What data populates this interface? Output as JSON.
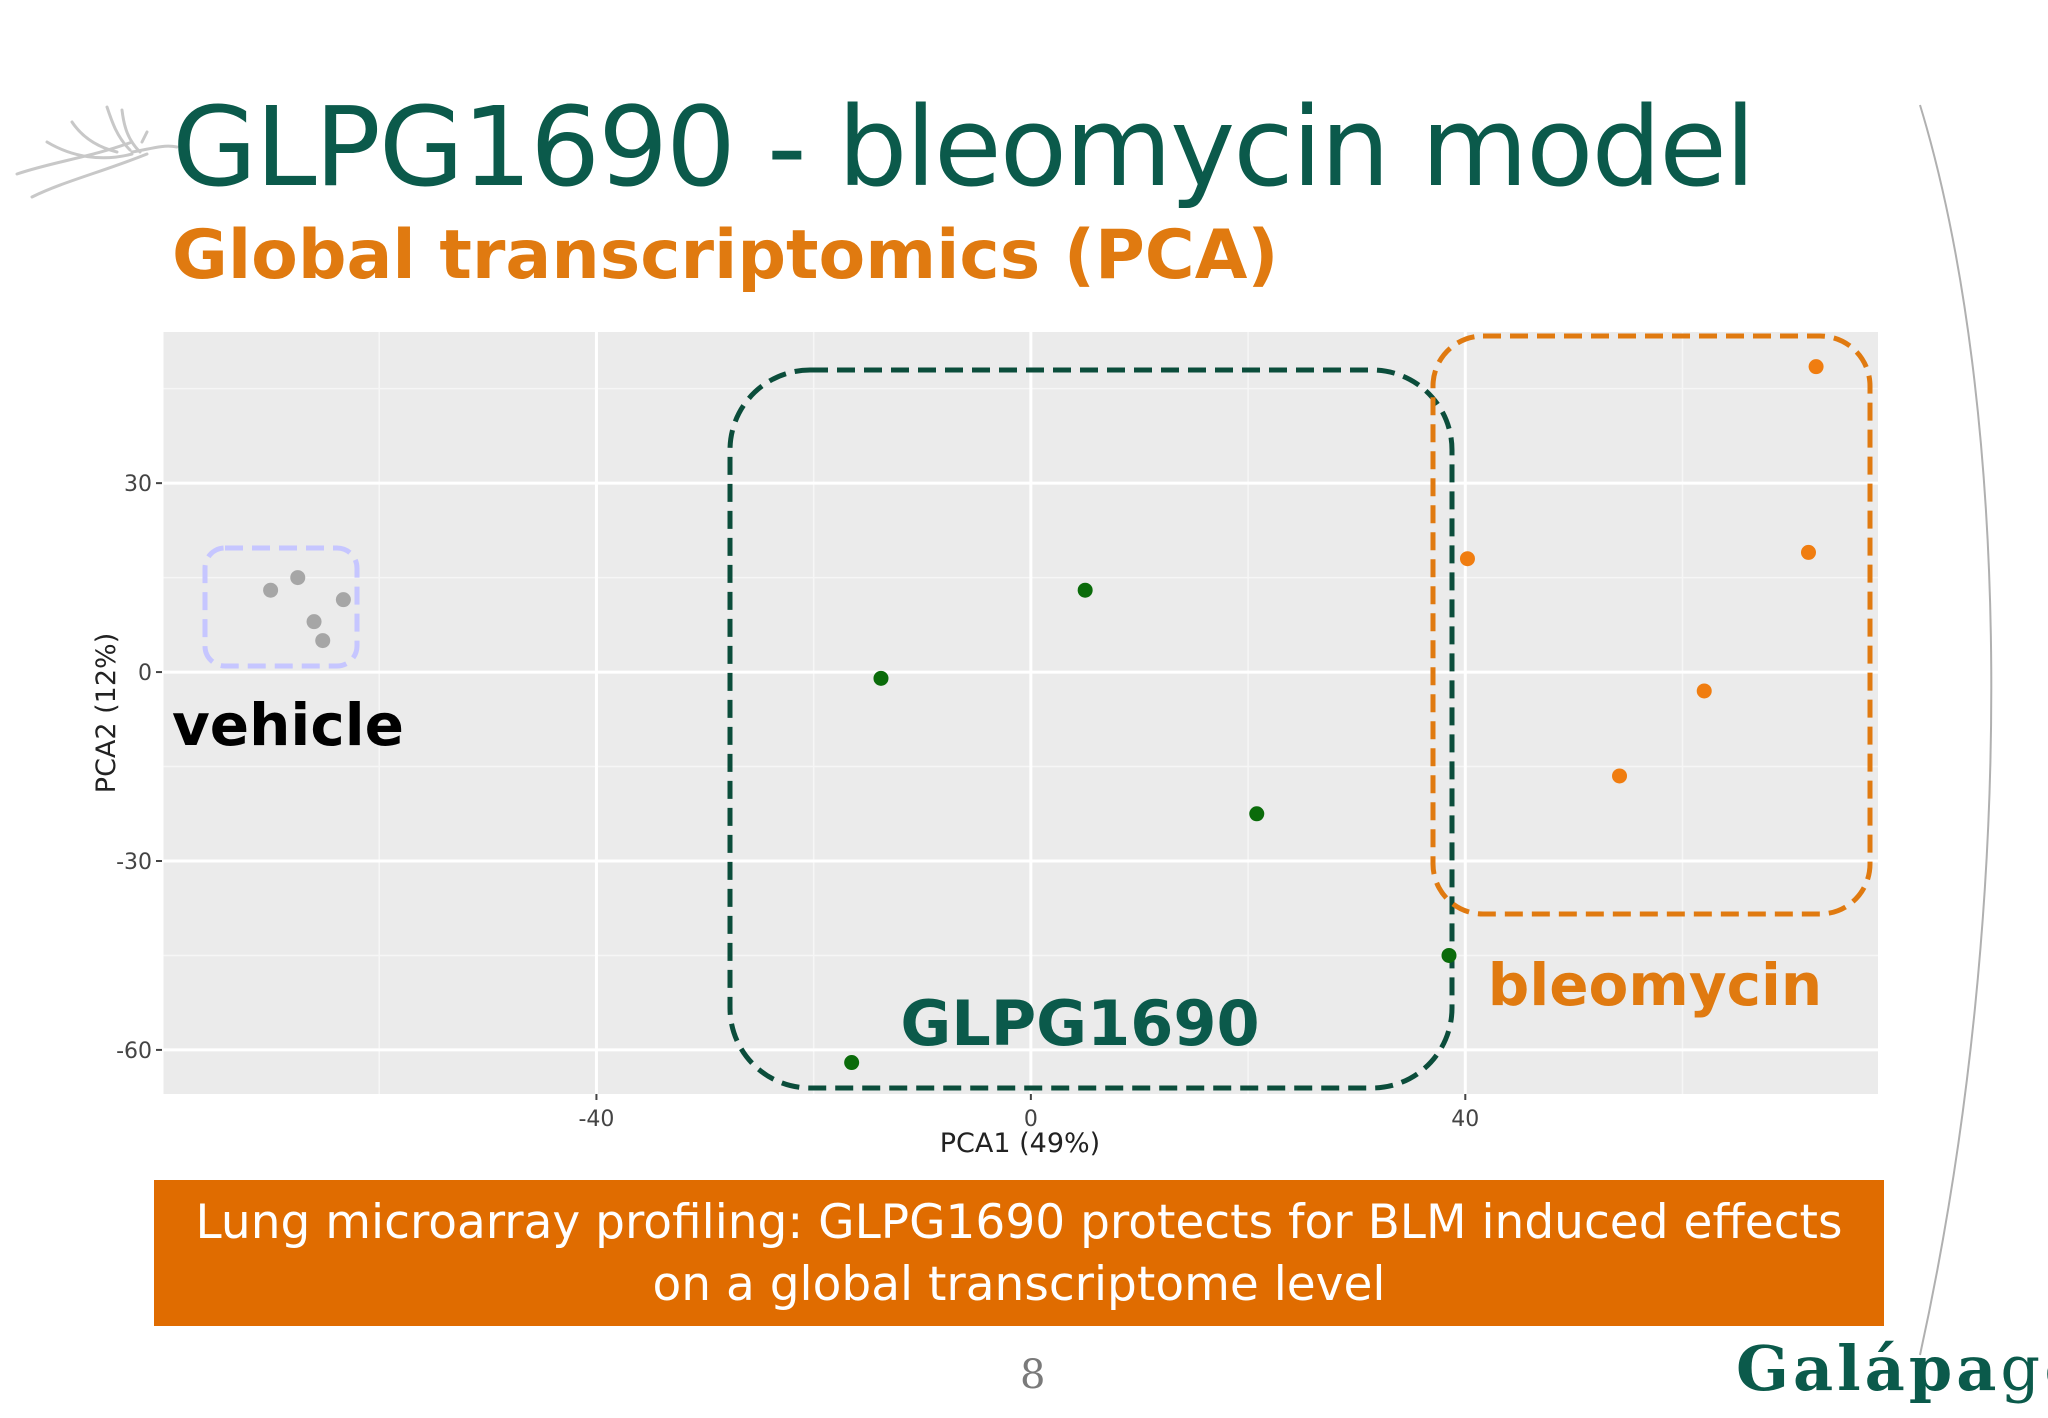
{
  "slide": {
    "title": "GLPG1690 - bleomycin model",
    "subtitle": "Global transcriptomics (PCA)",
    "banner_line1": "Lung microarray profiling: GLPG1690 protects for BLM induced effects",
    "banner_line2": "on a global transcriptome level",
    "page_number": "8",
    "brand_bold": "Galápa",
    "brand_light": "gos"
  },
  "colors": {
    "title": "#0b5a4b",
    "subtitle": "#e07a10",
    "banner": "#e06c00",
    "vehicle": "#a6a6a6",
    "glpg1690": "#0a6b0a",
    "bleomycin": "#f07d10",
    "panel": "#ebebeb"
  },
  "chart_data": {
    "type": "scatter",
    "xlabel": "PCA1 (49%)",
    "ylabel": "PCA2 (12%)",
    "xlim": [
      -80,
      78
    ],
    "ylim": [
      -67,
      54
    ],
    "x_ticks": [
      -40,
      0,
      40
    ],
    "y_ticks": [
      30,
      0,
      -30,
      -60
    ],
    "grid": true,
    "series": [
      {
        "name": "vehicle",
        "color": "#a6a6a6",
        "points": [
          [
            -70,
            13
          ],
          [
            -67.5,
            15
          ],
          [
            -66,
            8
          ],
          [
            -65.2,
            5
          ],
          [
            -63.3,
            11.5
          ]
        ]
      },
      {
        "name": "GLPG1690",
        "color": "#0a6b0a",
        "points": [
          [
            -13.8,
            -1
          ],
          [
            5,
            13
          ],
          [
            20.8,
            -22.5
          ],
          [
            38.5,
            -45
          ],
          [
            -16.5,
            -62
          ]
        ]
      },
      {
        "name": "bleomycin",
        "color": "#f07d10",
        "points": [
          [
            40.2,
            18
          ],
          [
            54.2,
            -16.5
          ],
          [
            62,
            -3
          ],
          [
            71.6,
            19
          ],
          [
            72.3,
            48.5
          ]
        ]
      }
    ],
    "annotations": [
      "vehicle",
      "GLPG1690",
      "bleomycin"
    ]
  }
}
